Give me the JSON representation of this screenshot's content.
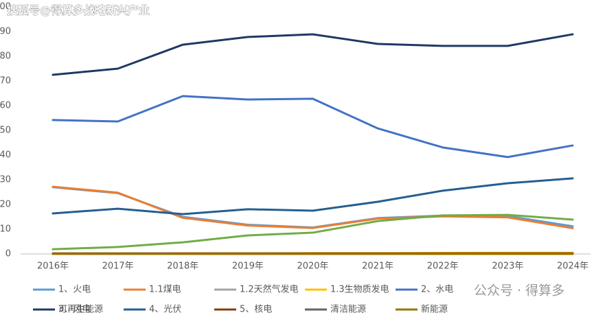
{
  "chart_data": {
    "type": "line",
    "watermark": "搜狐号@得算多战略新兴产业",
    "watermark2": "公众号 · 得算多",
    "categories": [
      "2016年",
      "2017年",
      "2018年",
      "2019年",
      "2020年",
      "2021年",
      "2022年",
      "2023年",
      "2024年"
    ],
    "ylim": [
      0,
      100
    ],
    "yticks": [
      0,
      10,
      20,
      30,
      40,
      50,
      60,
      70,
      80,
      90,
      100
    ],
    "grid": false,
    "legend": "bottom",
    "series": [
      {
        "name": "1、火电",
        "color": "#5b9bd5",
        "values": [
          27,
          24.6,
          15,
          11.8,
          10.7,
          14.5,
          15.5,
          15.3,
          11.2
        ]
      },
      {
        "name": "1.1煤电",
        "color": "#ed7d31",
        "values": [
          27.2,
          24.8,
          14.6,
          11.5,
          10.5,
          14.3,
          15.2,
          14.8,
          10.4
        ]
      },
      {
        "name": "1.2天然气发电",
        "color": "#a5a5a5",
        "values": [
          0,
          0,
          0,
          0,
          0,
          0,
          0,
          0,
          0
        ]
      },
      {
        "name": "1.3生物质发电",
        "color": "#ffc000",
        "values": [
          0.1,
          0.1,
          0.2,
          0.2,
          0.3,
          0.3,
          0.4,
          0.5,
          0.5
        ]
      },
      {
        "name": "2、水电",
        "color": "#4472c4",
        "values": [
          54.2,
          53.6,
          63.9,
          62.5,
          62.8,
          50.8,
          43.1,
          39.2,
          43.9
        ]
      },
      {
        "name": "3、风电",
        "color": "#70ad47",
        "values": [
          1.9,
          2.8,
          4.7,
          7.5,
          8.6,
          13.3,
          15.6,
          15.8,
          13.9
        ]
      },
      {
        "name": "4、光伏",
        "color": "#255e91",
        "values": [
          16.4,
          18.3,
          16.1,
          18.1,
          17.5,
          21.1,
          25.6,
          28.6,
          30.6
        ]
      },
      {
        "name": "5、核电",
        "color": "#843c0c",
        "values": [
          0.2,
          0.2,
          0.2,
          0.2,
          0.2,
          0.2,
          0.2,
          0.2,
          0.2
        ]
      },
      {
        "name": "清洁能源",
        "color": "#636363",
        "values": [
          0,
          0,
          0,
          0,
          0,
          0,
          0,
          0,
          0
        ]
      },
      {
        "name": "新能源",
        "color": "#997300",
        "values": [
          0,
          0,
          0,
          0,
          0,
          0,
          0,
          0,
          0
        ]
      },
      {
        "name": "可再生能源",
        "color": "#203864",
        "values": [
          72.5,
          75,
          84.7,
          87.8,
          88.9,
          85,
          84.2,
          84.2,
          88.9
        ]
      }
    ]
  }
}
